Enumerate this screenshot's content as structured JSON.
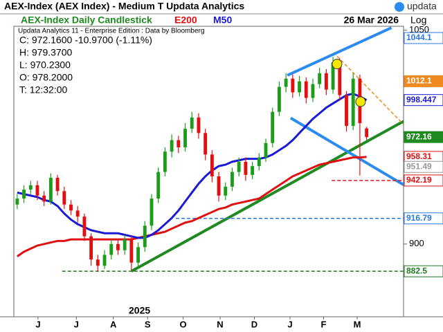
{
  "header": {
    "title": "AEX-Index (AEX Index) - Medium T  Updata Analytics",
    "logo": "updata",
    "chart_name": "AEX-Index Daily Candlestick",
    "indicator_1": "E200",
    "indicator_2": "M50",
    "date": "26 Mar 2026",
    "scale_label": "Log",
    "source": "Updata Analytics 11 - Enterprise Edition : Data by Bloomberg",
    "info_lines": [
      "C: 972.1600  -10.9700 (-1.11%)",
      "H: 979.3700",
      "L: 970.2300",
      "O: 978.2000",
      "T: 12:32:00"
    ]
  },
  "chart_data": {
    "type": "candlestick",
    "year_label": "2025",
    "log_scale": true,
    "xlim": [
      -0.5,
      57.5
    ],
    "ylim": [
      854,
      1053
    ],
    "yticks": [
      900,
      1050
    ],
    "xticks": [
      {
        "value": 3.1,
        "label": "J"
      },
      {
        "value": 8.8,
        "label": "J"
      },
      {
        "value": 14.3,
        "label": "A"
      },
      {
        "value": 19.4,
        "label": "S"
      },
      {
        "value": 24.7,
        "label": "O"
      },
      {
        "value": 30.2,
        "label": "N"
      },
      {
        "value": 35.3,
        "label": "D"
      },
      {
        "value": 40.6,
        "label": "J"
      },
      {
        "value": 45.6,
        "label": "F"
      },
      {
        "value": 50.6,
        "label": "M"
      }
    ],
    "up_color": "#1a9e1a",
    "down_color": "#e01010",
    "candles": {
      "open": [
        926,
        930,
        936,
        939,
        932,
        928,
        944,
        935,
        926,
        922,
        918,
        905,
        890,
        886,
        893,
        900,
        896,
        903,
        888,
        898,
        912,
        930,
        948,
        962,
        970,
        965,
        978,
        986,
        975,
        960,
        945,
        932,
        938,
        948,
        955,
        946,
        952,
        958,
        968,
        990,
        1008,
        1014,
        1004,
        1012,
        1000,
        1010,
        1018,
        1006,
        1026,
        1002,
        980,
        1014,
        978.2
      ],
      "high": [
        933,
        939,
        942,
        942,
        935,
        947,
        946,
        938,
        929,
        925,
        920,
        907,
        893,
        896,
        903,
        903,
        906,
        905,
        901,
        915,
        933,
        951,
        965,
        974,
        973,
        982,
        990,
        989,
        978,
        963,
        948,
        941,
        951,
        958,
        958,
        955,
        961,
        971,
        993,
        1012,
        1018,
        1017,
        1016,
        1015,
        1014,
        1022,
        1021,
        1030,
        1029,
        1005,
        1018,
        1017,
        979.37
      ],
      "low": [
        923,
        927,
        933,
        929,
        925,
        926,
        932,
        923,
        919,
        914,
        902,
        886,
        882.5,
        884,
        890,
        893,
        893,
        883,
        885,
        895,
        909,
        927,
        945,
        958,
        961,
        962,
        975,
        971,
        956,
        941,
        928,
        929,
        935,
        945,
        942,
        943,
        949,
        955,
        965,
        987,
        1004,
        1000,
        1001,
        996,
        997,
        1007,
        1002,
        1003,
        998,
        976,
        977,
        945.5,
        970.23
      ],
      "close": [
        930,
        936,
        939,
        932,
        928,
        944,
        935,
        926,
        922,
        918,
        905,
        890,
        886,
        893,
        900,
        896,
        903,
        888,
        898,
        912,
        930,
        948,
        962,
        970,
        965,
        978,
        986,
        975,
        960,
        945,
        932,
        938,
        948,
        955,
        946,
        952,
        958,
        968,
        990,
        1008,
        1014,
        1004,
        1012,
        1000,
        1010,
        1018,
        1006,
        1026,
        1002,
        980,
        1014,
        982,
        972.16
      ]
    },
    "series": [
      {
        "name": "E200",
        "color": "#e01010",
        "values": [
          892,
          895,
          897,
          899,
          900,
          901,
          902,
          902,
          903,
          903,
          903,
          903,
          903,
          903,
          903,
          903,
          903,
          903,
          904,
          905,
          906,
          907,
          908,
          910,
          912,
          914,
          915,
          917,
          919,
          921,
          923,
          924,
          926,
          927,
          928,
          929,
          930,
          933,
          936,
          939,
          942,
          945,
          947,
          949,
          951,
          953,
          954,
          955,
          956,
          957,
          958,
          958,
          958.31
        ]
      },
      {
        "name": "M50",
        "color": "#1a1ad6",
        "values": [
          934,
          933,
          932,
          931,
          929,
          928,
          925,
          920,
          916,
          913,
          911,
          909,
          908,
          907,
          907,
          907,
          906,
          905,
          904,
          904,
          906,
          909,
          913,
          917,
          922,
          928,
          934,
          940,
          945,
          949,
          952,
          953,
          955,
          956,
          957,
          957,
          957,
          958,
          960,
          963,
          966,
          970,
          975,
          980,
          985,
          989,
          993,
          996,
          999,
          1002,
          1003,
          1001,
          998.447
        ]
      }
    ],
    "trendlines": [
      {
        "x": [
          17.0,
          57.5
        ],
        "y": [
          882.5,
          983.3
        ],
        "color": "#1f8a1f",
        "dashed": false
      },
      {
        "x": [
          40.2,
          55.7
        ],
        "y": [
          1016.4,
          1051.9
        ],
        "color": "#2a8cf0",
        "dashed": false
      },
      {
        "x": [
          40.7,
          57.5
        ],
        "y": [
          985.6,
          939.3
        ],
        "color": "#2a8cf0",
        "dashed": false
      },
      {
        "x": [
          47.6,
          57.5
        ],
        "y": [
          1030.6,
          981
        ],
        "color": "#f08a20",
        "dashed": true
      },
      {
        "x": [
          6.7,
          57.5
        ],
        "y": [
          882.5,
          882.5
        ],
        "color": "#1f7a1f",
        "dashed": true
      },
      {
        "x": [
          23.6,
          57.5
        ],
        "y": [
          916.79,
          916.79
        ],
        "color": "#2a7ae0",
        "dashed": true
      },
      {
        "x": [
          46.8,
          57.5
        ],
        "y": [
          942.19,
          942.19
        ],
        "color": "#e01010",
        "dashed": true
      }
    ],
    "markers": [
      {
        "x": 47.6,
        "y": 1024.7,
        "color": "#f5e800"
      },
      {
        "x": 51.1,
        "y": 997.3,
        "color": "#f5e800"
      }
    ],
    "price_labels": [
      {
        "value": 1044.1,
        "label": "1044.1",
        "color": "#2a7ae0",
        "filled": false
      },
      {
        "value": 1012.1,
        "label": "1012.1",
        "color": "#f08a20",
        "filled": true
      },
      {
        "value": 998.447,
        "label": "998.447",
        "color": "#1a1ad6",
        "filled": false
      },
      {
        "value": 972.16,
        "label": "972.16",
        "color": "#1f8a1f",
        "filled": true
      },
      {
        "value": 958.31,
        "label": "958.31",
        "color": "#e01010",
        "filled": false
      },
      {
        "value": 951.49,
        "label": "951.49",
        "color": "#999999",
        "filled": false
      },
      {
        "value": 942.19,
        "label": "942.19",
        "color": "#e01010",
        "filled": false
      },
      {
        "value": 916.79,
        "label": "916.79",
        "color": "#2a7ae0",
        "filled": false
      },
      {
        "value": 882.5,
        "label": "882.5",
        "color": "#1f7a1f",
        "filled": false
      }
    ]
  }
}
